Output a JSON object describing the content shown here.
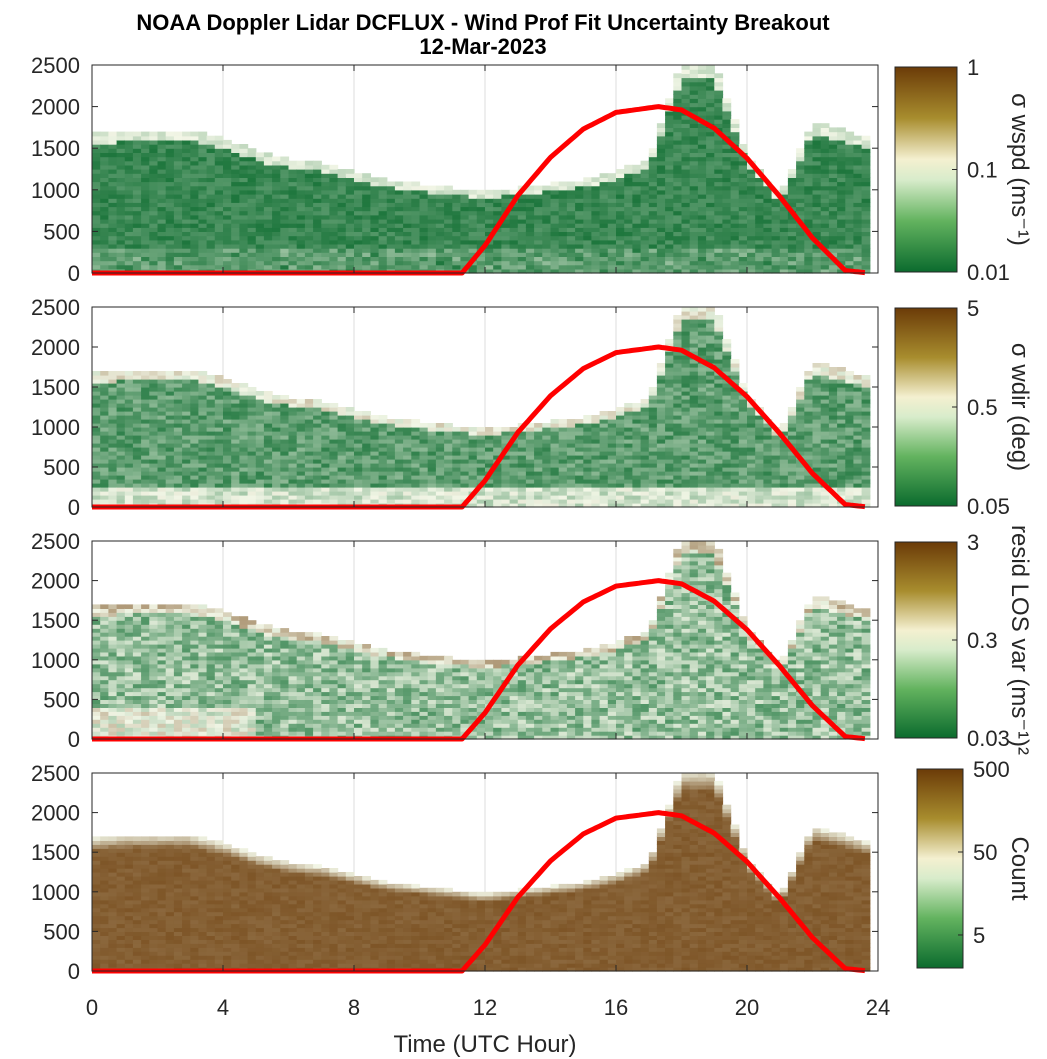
{
  "figure": {
    "title": "NOAA Doppler Lidar DCFLUX - Wind Prof Fit Uncertainty Breakout",
    "subtitle": "12-Mar-2023",
    "xlabel": "Time (UTC Hour)"
  },
  "colors": {
    "heat_low": "#0b6b2e",
    "heat_mid": "#f2f6e6",
    "heat_high": "#6b3b08",
    "sun_curve": "#ff0000",
    "background": "#ffffff"
  },
  "chart_data": [
    {
      "type": "heatmap",
      "ylabel": "σ wspd (ms⁻¹)",
      "xlim": [
        0,
        24
      ],
      "ylim": [
        0,
        2500
      ],
      "yticks": [
        "0",
        "500",
        "1000",
        "1500",
        "2000",
        "2500"
      ],
      "xticks": [
        "0",
        "4",
        "8",
        "12",
        "16",
        "20",
        "24"
      ],
      "grid": true,
      "colorbar": {
        "scale": "log",
        "range": [
          0.01,
          1
        ],
        "ticks": [
          "0.01",
          "0.1",
          "1"
        ],
        "label": "σ wspd (ms⁻¹)"
      },
      "profile_top_m": [
        [
          0,
          1650
        ],
        [
          1,
          1700
        ],
        [
          2,
          1700
        ],
        [
          3,
          1700
        ],
        [
          4,
          1600
        ],
        [
          5,
          1450
        ],
        [
          6,
          1350
        ],
        [
          7,
          1300
        ],
        [
          8,
          1200
        ],
        [
          9,
          1100
        ],
        [
          10,
          1050
        ],
        [
          11,
          1000
        ],
        [
          12,
          950
        ],
        [
          13,
          1000
        ],
        [
          14,
          1050
        ],
        [
          15,
          1100
        ],
        [
          16,
          1200
        ],
        [
          17,
          1350
        ],
        [
          18,
          2500
        ],
        [
          19,
          2500
        ],
        [
          20,
          1400
        ],
        [
          21,
          900
        ],
        [
          22,
          1800
        ],
        [
          23,
          1700
        ],
        [
          23.7,
          1600
        ]
      ],
      "sun_elevation_curve_m": [
        [
          0,
          0
        ],
        [
          11.3,
          0
        ],
        [
          12,
          330
        ],
        [
          13,
          930
        ],
        [
          14,
          1390
        ],
        [
          15,
          1730
        ],
        [
          16,
          1930
        ],
        [
          17.3,
          2000
        ],
        [
          18,
          1960
        ],
        [
          19,
          1740
        ],
        [
          20,
          1380
        ],
        [
          21,
          920
        ],
        [
          22,
          420
        ],
        [
          23,
          30
        ],
        [
          23.7,
          0
        ]
      ],
      "notes": "curve scaled to altitude axis"
    },
    {
      "type": "heatmap",
      "ylabel": "σ wdir (deg)",
      "xlim": [
        0,
        24
      ],
      "ylim": [
        0,
        2500
      ],
      "yticks": [
        "0",
        "500",
        "1000",
        "1500",
        "2000",
        "2500"
      ],
      "xticks": [
        "0",
        "4",
        "8",
        "12",
        "16",
        "20",
        "24"
      ],
      "grid": true,
      "colorbar": {
        "scale": "log",
        "range": [
          0.05,
          5
        ],
        "ticks": [
          "0.05",
          "0.5",
          "5"
        ],
        "label": "σ wdir (deg)"
      },
      "profile_top_m": [
        [
          0,
          1650
        ],
        [
          1,
          1700
        ],
        [
          2,
          1700
        ],
        [
          3,
          1700
        ],
        [
          4,
          1600
        ],
        [
          5,
          1450
        ],
        [
          6,
          1350
        ],
        [
          7,
          1300
        ],
        [
          8,
          1200
        ],
        [
          9,
          1100
        ],
        [
          10,
          1050
        ],
        [
          11,
          1000
        ],
        [
          12,
          950
        ],
        [
          13,
          1000
        ],
        [
          14,
          1050
        ],
        [
          15,
          1100
        ],
        [
          16,
          1200
        ],
        [
          17,
          1350
        ],
        [
          18,
          2500
        ],
        [
          19,
          2500
        ],
        [
          20,
          1400
        ],
        [
          21,
          900
        ],
        [
          22,
          1800
        ],
        [
          23,
          1700
        ],
        [
          23.7,
          1600
        ]
      ],
      "sun_elevation_curve_m": [
        [
          0,
          0
        ],
        [
          11.3,
          0
        ],
        [
          12,
          330
        ],
        [
          13,
          930
        ],
        [
          14,
          1390
        ],
        [
          15,
          1730
        ],
        [
          16,
          1930
        ],
        [
          17.3,
          2000
        ],
        [
          18,
          1960
        ],
        [
          19,
          1740
        ],
        [
          20,
          1380
        ],
        [
          21,
          920
        ],
        [
          22,
          420
        ],
        [
          23,
          30
        ],
        [
          23.7,
          0
        ]
      ]
    },
    {
      "type": "heatmap",
      "ylabel": "resid LOS var (ms⁻¹)²",
      "xlim": [
        0,
        24
      ],
      "ylim": [
        0,
        2500
      ],
      "yticks": [
        "0",
        "500",
        "1000",
        "1500",
        "2000",
        "2500"
      ],
      "xticks": [
        "0",
        "4",
        "8",
        "12",
        "16",
        "20",
        "24"
      ],
      "grid": true,
      "colorbar": {
        "scale": "log",
        "range": [
          0.03,
          3
        ],
        "ticks": [
          "0.03",
          "0.3",
          "3"
        ],
        "label": "resid LOS var (ms⁻¹)²"
      },
      "profile_top_m": [
        [
          0,
          1650
        ],
        [
          1,
          1700
        ],
        [
          2,
          1700
        ],
        [
          3,
          1700
        ],
        [
          4,
          1600
        ],
        [
          5,
          1450
        ],
        [
          6,
          1350
        ],
        [
          7,
          1300
        ],
        [
          8,
          1200
        ],
        [
          9,
          1100
        ],
        [
          10,
          1050
        ],
        [
          11,
          1000
        ],
        [
          12,
          950
        ],
        [
          13,
          1000
        ],
        [
          14,
          1050
        ],
        [
          15,
          1100
        ],
        [
          16,
          1200
        ],
        [
          17,
          1350
        ],
        [
          18,
          2500
        ],
        [
          19,
          2500
        ],
        [
          20,
          1400
        ],
        [
          21,
          900
        ],
        [
          22,
          1800
        ],
        [
          23,
          1700
        ],
        [
          23.7,
          1600
        ]
      ],
      "sun_elevation_curve_m": [
        [
          0,
          0
        ],
        [
          11.3,
          0
        ],
        [
          12,
          330
        ],
        [
          13,
          930
        ],
        [
          14,
          1390
        ],
        [
          15,
          1730
        ],
        [
          16,
          1930
        ],
        [
          17.3,
          2000
        ],
        [
          18,
          1960
        ],
        [
          19,
          1740
        ],
        [
          20,
          1380
        ],
        [
          21,
          920
        ],
        [
          22,
          420
        ],
        [
          23,
          30
        ],
        [
          23.7,
          0
        ]
      ]
    },
    {
      "type": "heatmap",
      "ylabel": "Count",
      "xlim": [
        0,
        24
      ],
      "ylim": [
        0,
        2500
      ],
      "yticks": [
        "0",
        "500",
        "1000",
        "1500",
        "2000",
        "2500"
      ],
      "xticks": [
        "0",
        "4",
        "8",
        "12",
        "16",
        "20",
        "24"
      ],
      "grid": true,
      "colorbar": {
        "scale": "log",
        "range": [
          2,
          500
        ],
        "ticks": [
          "5",
          "50",
          "500"
        ],
        "label": "Count"
      },
      "profile_top_m": [
        [
          0,
          1650
        ],
        [
          1,
          1700
        ],
        [
          2,
          1700
        ],
        [
          3,
          1700
        ],
        [
          4,
          1600
        ],
        [
          5,
          1450
        ],
        [
          6,
          1350
        ],
        [
          7,
          1300
        ],
        [
          8,
          1200
        ],
        [
          9,
          1100
        ],
        [
          10,
          1050
        ],
        [
          11,
          1000
        ],
        [
          12,
          950
        ],
        [
          13,
          1000
        ],
        [
          14,
          1050
        ],
        [
          15,
          1100
        ],
        [
          16,
          1200
        ],
        [
          17,
          1350
        ],
        [
          18,
          2500
        ],
        [
          19,
          2500
        ],
        [
          20,
          1400
        ],
        [
          21,
          900
        ],
        [
          22,
          1800
        ],
        [
          23,
          1700
        ],
        [
          23.7,
          1600
        ]
      ],
      "sun_elevation_curve_m": [
        [
          0,
          0
        ],
        [
          11.3,
          0
        ],
        [
          12,
          330
        ],
        [
          13,
          930
        ],
        [
          14,
          1390
        ],
        [
          15,
          1730
        ],
        [
          16,
          1930
        ],
        [
          17.3,
          2000
        ],
        [
          18,
          1960
        ],
        [
          19,
          1740
        ],
        [
          20,
          1380
        ],
        [
          21,
          920
        ],
        [
          22,
          420
        ],
        [
          23,
          30
        ],
        [
          23.7,
          0
        ]
      ]
    }
  ]
}
